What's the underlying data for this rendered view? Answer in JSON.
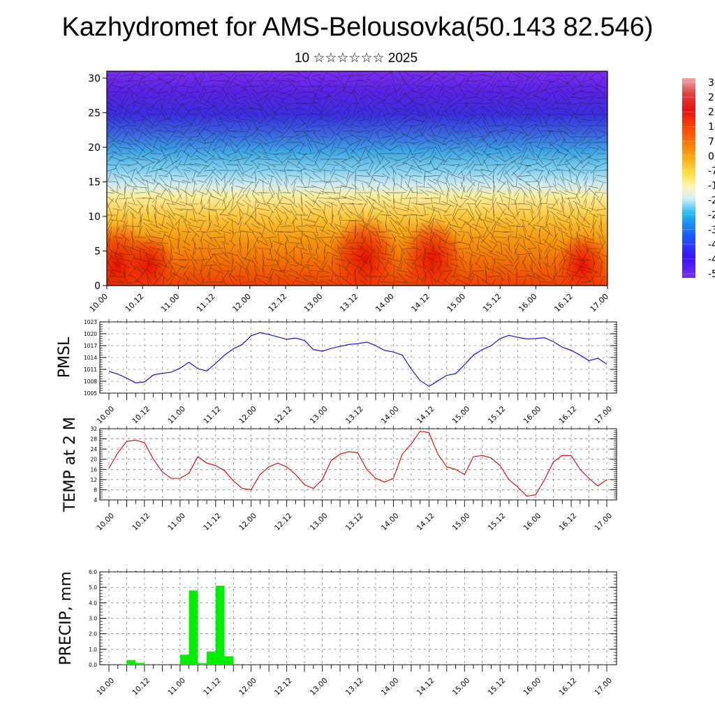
{
  "title": "Kazhydromet for AMS-Belousovka(50.143 82.546)",
  "subtitle": "10 ☆☆☆☆☆☆ 2025",
  "chart_data": [
    {
      "type": "heatmap",
      "name": "upper-air cross-section",
      "ylim": [
        0,
        31
      ],
      "y_ticks": [
        "0",
        "5",
        "10",
        "15",
        "20",
        "25",
        "30"
      ],
      "x_ticks": [
        "10.00",
        "10.12",
        "11.00",
        "11.12",
        "12.00",
        "12.12",
        "13.00",
        "13.12",
        "14.00",
        "14.12",
        "15.00",
        "15.12",
        "16.00",
        "16.12",
        "17.00"
      ],
      "colorbar_labels": [
        "3",
        "2",
        "2",
        "14",
        "7",
        "0",
        "-7",
        "-1",
        "-2",
        "-2",
        "-3",
        "-4",
        "-4",
        "-5"
      ],
      "warm_cores": [
        {
          "x": 0.3,
          "y": 3,
          "value": 30
        },
        {
          "x": 1.2,
          "y": 3,
          "value": 24
        },
        {
          "x": 7.2,
          "y": 4,
          "value": 30
        },
        {
          "x": 9.1,
          "y": 4,
          "value": 28
        },
        {
          "x": 13.3,
          "y": 3,
          "value": 24
        }
      ]
    },
    {
      "type": "line",
      "ylabel": "PMSL",
      "ylim": [
        1005,
        1023
      ],
      "y_ticks": [
        "1005",
        "1008",
        "1011",
        "1014",
        "1017",
        "1020",
        "1023"
      ],
      "x_ticks": [
        "10.00",
        "10.12",
        "11.00",
        "11.12",
        "12.00",
        "12.12",
        "13.00",
        "13.12",
        "14.00",
        "14.12",
        "15.00",
        "15.12",
        "16.00",
        "16.12",
        "17.00"
      ],
      "color": "#0000cc",
      "x": [
        0,
        0.25,
        0.5,
        0.75,
        1,
        1.25,
        1.5,
        1.75,
        2,
        2.25,
        2.5,
        2.75,
        3,
        3.25,
        3.5,
        3.75,
        4,
        4.25,
        4.5,
        4.75,
        5,
        5.25,
        5.5,
        5.75,
        6,
        6.25,
        6.5,
        6.75,
        7,
        7.25,
        7.5,
        7.75,
        8,
        8.25,
        8.5,
        8.75,
        9,
        9.25,
        9.5,
        9.75,
        10,
        10.25,
        10.5,
        10.75,
        11,
        11.25,
        11.5,
        11.75,
        12,
        12.25,
        12.5,
        12.75,
        13,
        13.25,
        13.5,
        13.75,
        14
      ],
      "values": [
        1010.5,
        1009.8,
        1008.8,
        1007.6,
        1007.8,
        1009.6,
        1010,
        1010.3,
        1011.3,
        1012.8,
        1011.2,
        1010.6,
        1012.5,
        1014.6,
        1016.2,
        1017.3,
        1019.5,
        1020.3,
        1019.8,
        1019.2,
        1018.6,
        1018.9,
        1018.3,
        1016,
        1015.6,
        1016.3,
        1016.8,
        1017.3,
        1017.5,
        1017.9,
        1017,
        1015.8,
        1015.4,
        1014.6,
        1011.1,
        1008.2,
        1006.7,
        1008.1,
        1009.5,
        1009.9,
        1012.2,
        1014.6,
        1016,
        1017,
        1018.8,
        1019.6,
        1019.1,
        1018.7,
        1018.8,
        1019,
        1018,
        1016.6,
        1015.8,
        1014.6,
        1013.2,
        1013.8,
        1012.3
      ]
    },
    {
      "type": "line",
      "ylabel": "TEMP at 2 M",
      "ylim": [
        4,
        32
      ],
      "y_ticks": [
        "4",
        "8",
        "12",
        "16",
        "20",
        "24",
        "28",
        "32"
      ],
      "x_ticks": [
        "10.00",
        "10.12",
        "11.00",
        "11.12",
        "12.00",
        "12.12",
        "13.00",
        "13.12",
        "14.00",
        "14.12",
        "15.00",
        "15.12",
        "16.00",
        "16.12",
        "17.00"
      ],
      "color": "#dd0000",
      "x": [
        0,
        0.25,
        0.5,
        0.75,
        1,
        1.25,
        1.5,
        1.75,
        2,
        2.25,
        2.5,
        2.75,
        3,
        3.25,
        3.5,
        3.75,
        4,
        4.25,
        4.5,
        4.75,
        5,
        5.25,
        5.5,
        5.75,
        6,
        6.25,
        6.5,
        6.75,
        7,
        7.25,
        7.5,
        7.75,
        8,
        8.25,
        8.5,
        8.75,
        9,
        9.25,
        9.5,
        9.75,
        10,
        10.25,
        10.5,
        10.75,
        11,
        11.25,
        11.5,
        11.75,
        12,
        12.25,
        12.5,
        12.75,
        13,
        13.25,
        13.5,
        13.75,
        14
      ],
      "values": [
        16.5,
        22.5,
        27,
        27.5,
        26.5,
        20,
        15,
        12.5,
        12.5,
        14.5,
        21,
        18.5,
        17.5,
        15.5,
        11.5,
        8.5,
        8,
        14,
        17,
        18.5,
        17,
        14,
        10,
        8.5,
        12,
        19.5,
        22,
        23,
        22.5,
        16,
        12.5,
        11,
        12.5,
        22,
        26,
        31,
        30.5,
        22,
        17,
        16,
        14,
        21,
        21.5,
        20.5,
        17.5,
        12,
        9,
        5.5,
        6,
        12,
        19,
        21.5,
        21.5,
        16,
        12.5,
        9.5,
        12
      ]
    },
    {
      "type": "bar",
      "ylabel": "PRECIP, mm",
      "ylim": [
        0,
        6
      ],
      "y_ticks": [
        "0.0",
        "1.0",
        "2.0",
        "3.0",
        "4.0",
        "5.0",
        "6.0"
      ],
      "x_ticks": [
        "10.00",
        "10.12",
        "11.00",
        "11.12",
        "12.00",
        "12.12",
        "13.00",
        "13.12",
        "14.00",
        "14.12",
        "15.00",
        "15.12",
        "16.00",
        "16.12",
        "17.00"
      ],
      "color": "#00ee00",
      "bar_width": 0.25,
      "x": [
        0.5,
        0.75,
        2,
        2.25,
        2.5,
        2.75,
        3,
        3.25
      ],
      "values": [
        0.3,
        0.12,
        0.65,
        4.8,
        0.1,
        0.85,
        5.1,
        0.55
      ]
    }
  ]
}
